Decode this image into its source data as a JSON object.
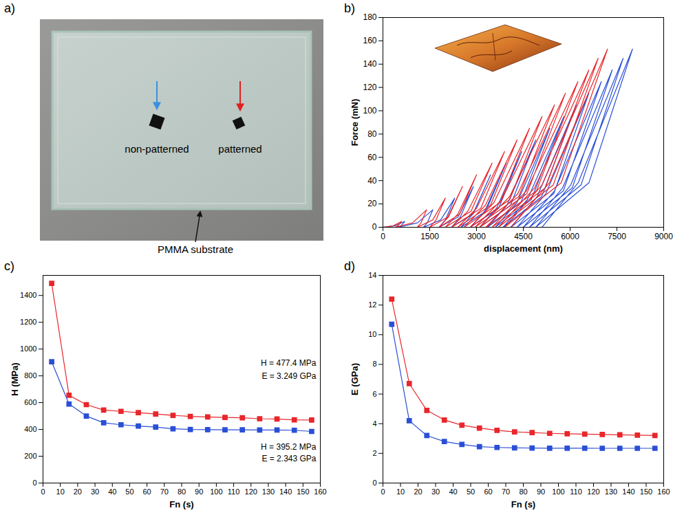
{
  "chart_data": [
    {
      "type": "photo",
      "panel": "a)",
      "labels": [
        "non-patterned",
        "patterned",
        "PMMA substrate"
      ]
    },
    {
      "type": "line",
      "panel": "b)",
      "x_label": "displacement (nm)",
      "y_label": "Force (mN)",
      "xlim": [
        0,
        9000
      ],
      "xticks": [
        0,
        1500,
        3000,
        4500,
        6000,
        7500,
        9000
      ],
      "ylim": [
        0,
        180
      ],
      "yticks": [
        0,
        20,
        40,
        60,
        80,
        100,
        120,
        140,
        160,
        180
      ],
      "series": [
        {
          "color": "#2a4fd6",
          "line_style": "solid",
          "x": [
            0,
            385,
            700,
            580,
            500,
            1105,
            1600,
            1420,
            1300,
            1850,
            2300,
            2000,
            1800,
            2405,
            2900,
            2480,
            2200,
            2888,
            3450,
            2880,
            2500,
            3298,
            3950,
            3260,
            2800,
            3708,
            4450,
            3640,
            3100,
            4090,
            4900,
            3970,
            3350,
            4423,
            5350,
            4300,
            3600,
            4755,
            5800,
            4630,
            3850,
            5088,
            6200,
            4940,
            4100,
            5475,
            6600,
            5220,
            4300,
            5785,
            7000,
            5500,
            4500,
            6068,
            7350,
            5760,
            4700,
            6350,
            7700,
            6020,
            4900,
            6605,
            8000,
            6260,
            5100
          ],
          "values": [
            0,
            1.25,
            5,
            1.25,
            0,
            3.75,
            15,
            3.75,
            0,
            6.25,
            25,
            6.25,
            0,
            8.75,
            35,
            8.75,
            0,
            11.25,
            45,
            11.25,
            0,
            13.75,
            55,
            13.75,
            0,
            16.25,
            65,
            16.25,
            0,
            18.75,
            75,
            18.75,
            0,
            21.25,
            85,
            21.25,
            0,
            23.75,
            95,
            23.75,
            0,
            26.25,
            105,
            26.25,
            0,
            28.75,
            115,
            28.75,
            0,
            31.25,
            125,
            31.25,
            0,
            33.75,
            135,
            33.75,
            0,
            36.25,
            145,
            36.25,
            0,
            38.25,
            153,
            38.25,
            0
          ]
        },
        {
          "color": "#e8262b",
          "line_style": "solid",
          "x": [
            0,
            330,
            600,
            480,
            400,
            950,
            1400,
            1220,
            1100,
            1595,
            2000,
            1700,
            1500,
            2078,
            2550,
            2100,
            1800,
            2460,
            3000,
            2400,
            2000,
            2825,
            3500,
            2720,
            2200,
            3135,
            3900,
            3000,
            2400,
            3445,
            4300,
            3280,
            2600,
            3755,
            4700,
            3560,
            2800,
            4065,
            5100,
            3810,
            2950,
            4353,
            5500,
            4060,
            3100,
            4613,
            5850,
            4320,
            3300,
            4923,
            6250,
            4600,
            3500,
            5205,
            6600,
            4860,
            3700,
            5460,
            6900,
            5100,
            3900,
            5715,
            7200,
            5340,
            4100
          ],
          "values": [
            0,
            1.25,
            5,
            1.25,
            0,
            3.75,
            15,
            3.75,
            0,
            6.25,
            25,
            6.25,
            0,
            8.75,
            35,
            8.75,
            0,
            11.25,
            45,
            11.25,
            0,
            13.75,
            55,
            13.75,
            0,
            16.25,
            65,
            16.25,
            0,
            18.75,
            75,
            18.75,
            0,
            21.25,
            85,
            21.25,
            0,
            23.75,
            95,
            23.75,
            0,
            26.25,
            105,
            26.25,
            0,
            28.75,
            115,
            28.75,
            0,
            31.25,
            125,
            31.25,
            0,
            33.75,
            135,
            33.75,
            0,
            36.25,
            145,
            36.25,
            0,
            38.25,
            153,
            38.25,
            0
          ]
        }
      ]
    },
    {
      "type": "line",
      "panel": "c)",
      "x_label": "Fn (s)",
      "y_label": "H (MPa)",
      "marker": "square",
      "x": [
        5,
        15,
        25,
        35,
        45,
        55,
        65,
        75,
        85,
        95,
        105,
        115,
        125,
        135,
        145,
        155
      ],
      "xlim": [
        0,
        160
      ],
      "xticks": [
        0,
        10,
        20,
        30,
        40,
        50,
        60,
        70,
        80,
        90,
        100,
        110,
        120,
        130,
        140,
        150,
        160
      ],
      "ylim": [
        0,
        1550
      ],
      "yticks": [
        0,
        200,
        400,
        600,
        800,
        1000,
        1200,
        1400
      ],
      "annotations": [
        "H = 477.4 MPa",
        "E = 3.249 GPa",
        "H = 395.2 MPa",
        "E = 2.343 GPa"
      ],
      "series": [
        {
          "color": "#e8262b",
          "values": [
            1490,
            655,
            585,
            545,
            535,
            525,
            515,
            505,
            497,
            493,
            490,
            487,
            480,
            478,
            472,
            470
          ]
        },
        {
          "color": "#2a4fd6",
          "values": [
            905,
            590,
            500,
            450,
            435,
            425,
            418,
            405,
            400,
            398,
            397,
            397,
            396,
            396,
            394,
            385
          ]
        }
      ]
    },
    {
      "type": "line",
      "panel": "d)",
      "x_label": "Fn (s)",
      "y_label": "E (GPa)",
      "marker": "square",
      "x": [
        5,
        15,
        25,
        35,
        45,
        55,
        65,
        75,
        85,
        95,
        105,
        115,
        125,
        135,
        145,
        155
      ],
      "xlim": [
        0,
        160
      ],
      "xticks": [
        0,
        10,
        20,
        30,
        40,
        50,
        60,
        70,
        80,
        90,
        100,
        110,
        120,
        130,
        140,
        150,
        160
      ],
      "ylim": [
        0,
        14
      ],
      "yticks": [
        0,
        2,
        4,
        6,
        8,
        10,
        12,
        14
      ],
      "series": [
        {
          "color": "#e8262b",
          "values": [
            12.4,
            6.7,
            4.9,
            4.25,
            3.9,
            3.7,
            3.55,
            3.45,
            3.4,
            3.35,
            3.32,
            3.3,
            3.27,
            3.25,
            3.23,
            3.2
          ]
        },
        {
          "color": "#2a4fd6",
          "values": [
            10.7,
            4.2,
            3.2,
            2.8,
            2.6,
            2.45,
            2.4,
            2.37,
            2.36,
            2.35,
            2.35,
            2.35,
            2.34,
            2.34,
            2.34,
            2.34
          ]
        }
      ]
    }
  ]
}
